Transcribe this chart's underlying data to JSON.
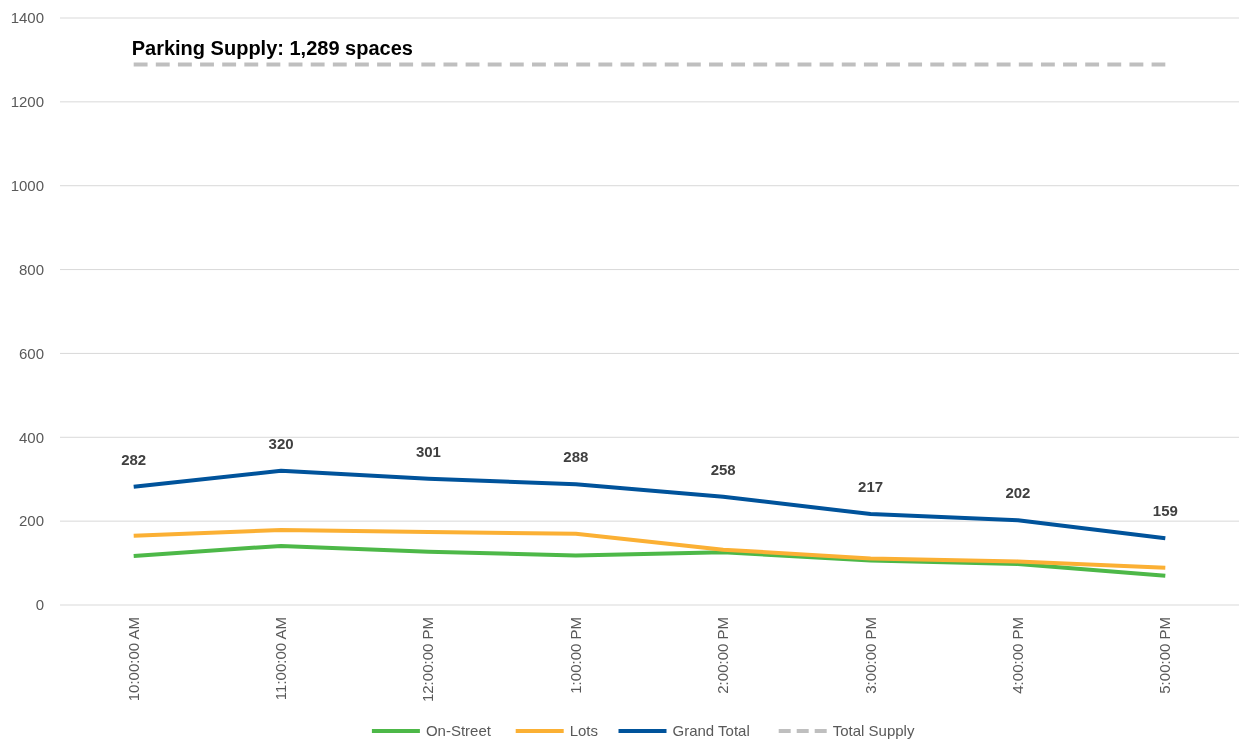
{
  "chart_data": {
    "type": "line",
    "categories": [
      "10:00:00 AM",
      "11:00:00 AM",
      "12:00:00 PM",
      "1:00:00 PM",
      "2:00:00 PM",
      "3:00:00 PM",
      "4:00:00 PM",
      "5:00:00 PM"
    ],
    "series": [
      {
        "name": "On-Street",
        "color": "#4db848",
        "values": [
          117,
          141,
          127,
          118,
          126,
          106,
          98,
          70
        ]
      },
      {
        "name": "Lots",
        "color": "#fbb034",
        "values": [
          165,
          179,
          174,
          170,
          132,
          111,
          104,
          89
        ]
      },
      {
        "name": "Grand Total",
        "color": "#00539b",
        "values": [
          282,
          320,
          301,
          288,
          258,
          217,
          202,
          159
        ],
        "value_labels": [
          "282",
          "320",
          "301",
          "288",
          "258",
          "217",
          "202",
          "159"
        ]
      },
      {
        "name": "Total Supply",
        "color": "#bfbfbf",
        "line_style": "dashed",
        "values": [
          1289,
          1289,
          1289,
          1289,
          1289,
          1289,
          1289,
          1289
        ]
      }
    ],
    "annotations": [
      {
        "text": "Parking Supply: 1,289 spaces",
        "x": "10:00:00 AM",
        "y": 1289
      }
    ],
    "ylim": [
      0,
      1400
    ],
    "yticks": [
      0,
      200,
      400,
      600,
      800,
      1000,
      1200,
      1400
    ],
    "grid": "y",
    "legend": "bottom",
    "line_style": "solid",
    "marker": "none"
  }
}
